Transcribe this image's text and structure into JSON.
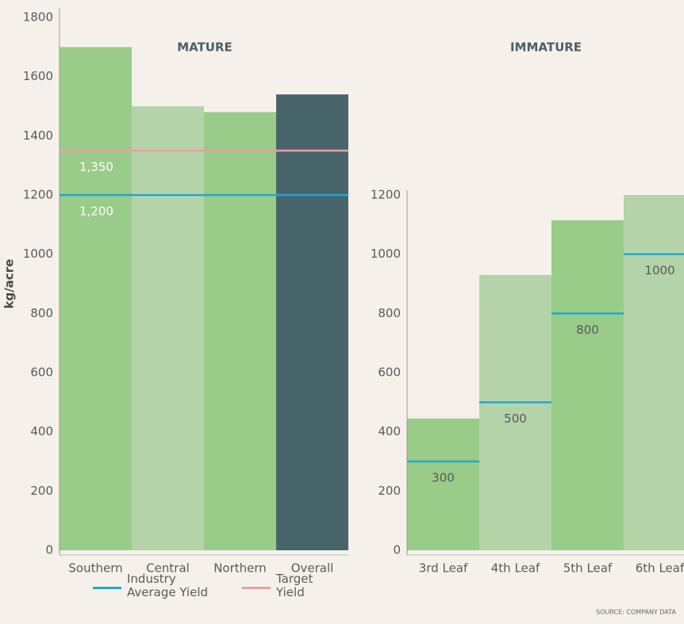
{
  "chart_data": [
    {
      "type": "bar",
      "title": "MATURE",
      "ylabel": "kg/acre",
      "categories": [
        "Southern",
        "Central",
        "Northern",
        "Overall"
      ],
      "values": [
        1700,
        1500,
        1480,
        1540
      ],
      "colors": [
        "#99cc88",
        "#b5d3a9",
        "#99cc88",
        "#48656b"
      ],
      "ylim": [
        0,
        1800
      ],
      "yticks": [
        0,
        200,
        400,
        600,
        800,
        1000,
        1200,
        1400,
        1600,
        1800
      ],
      "lines": [
        {
          "name": "Industry Average Yield",
          "color": "#1ba8d8",
          "value": 1200,
          "value_label": "1,200"
        },
        {
          "name": "Target Yield",
          "color": "#e8a0a0",
          "value": 1350,
          "value_label": "1,350"
        }
      ]
    },
    {
      "type": "bar",
      "title": "IMMATURE",
      "categories": [
        "3rd Leaf",
        "4th Leaf",
        "5th Leaf",
        "6th Leaf"
      ],
      "values": [
        445,
        930,
        1115,
        1200
      ],
      "colors": [
        "#99cc88",
        "#b5d3a9",
        "#99cc88",
        "#b5d3a9"
      ],
      "ylim": [
        0,
        1200
      ],
      "yticks": [
        0,
        200,
        400,
        600,
        800,
        1000,
        1200
      ],
      "markers": {
        "name": "Industry Average Yield",
        "color": "#1ba8d8",
        "values": [
          300,
          500,
          800,
          1000
        ]
      }
    }
  ],
  "source": "SOURCE: COMPANY DATA"
}
